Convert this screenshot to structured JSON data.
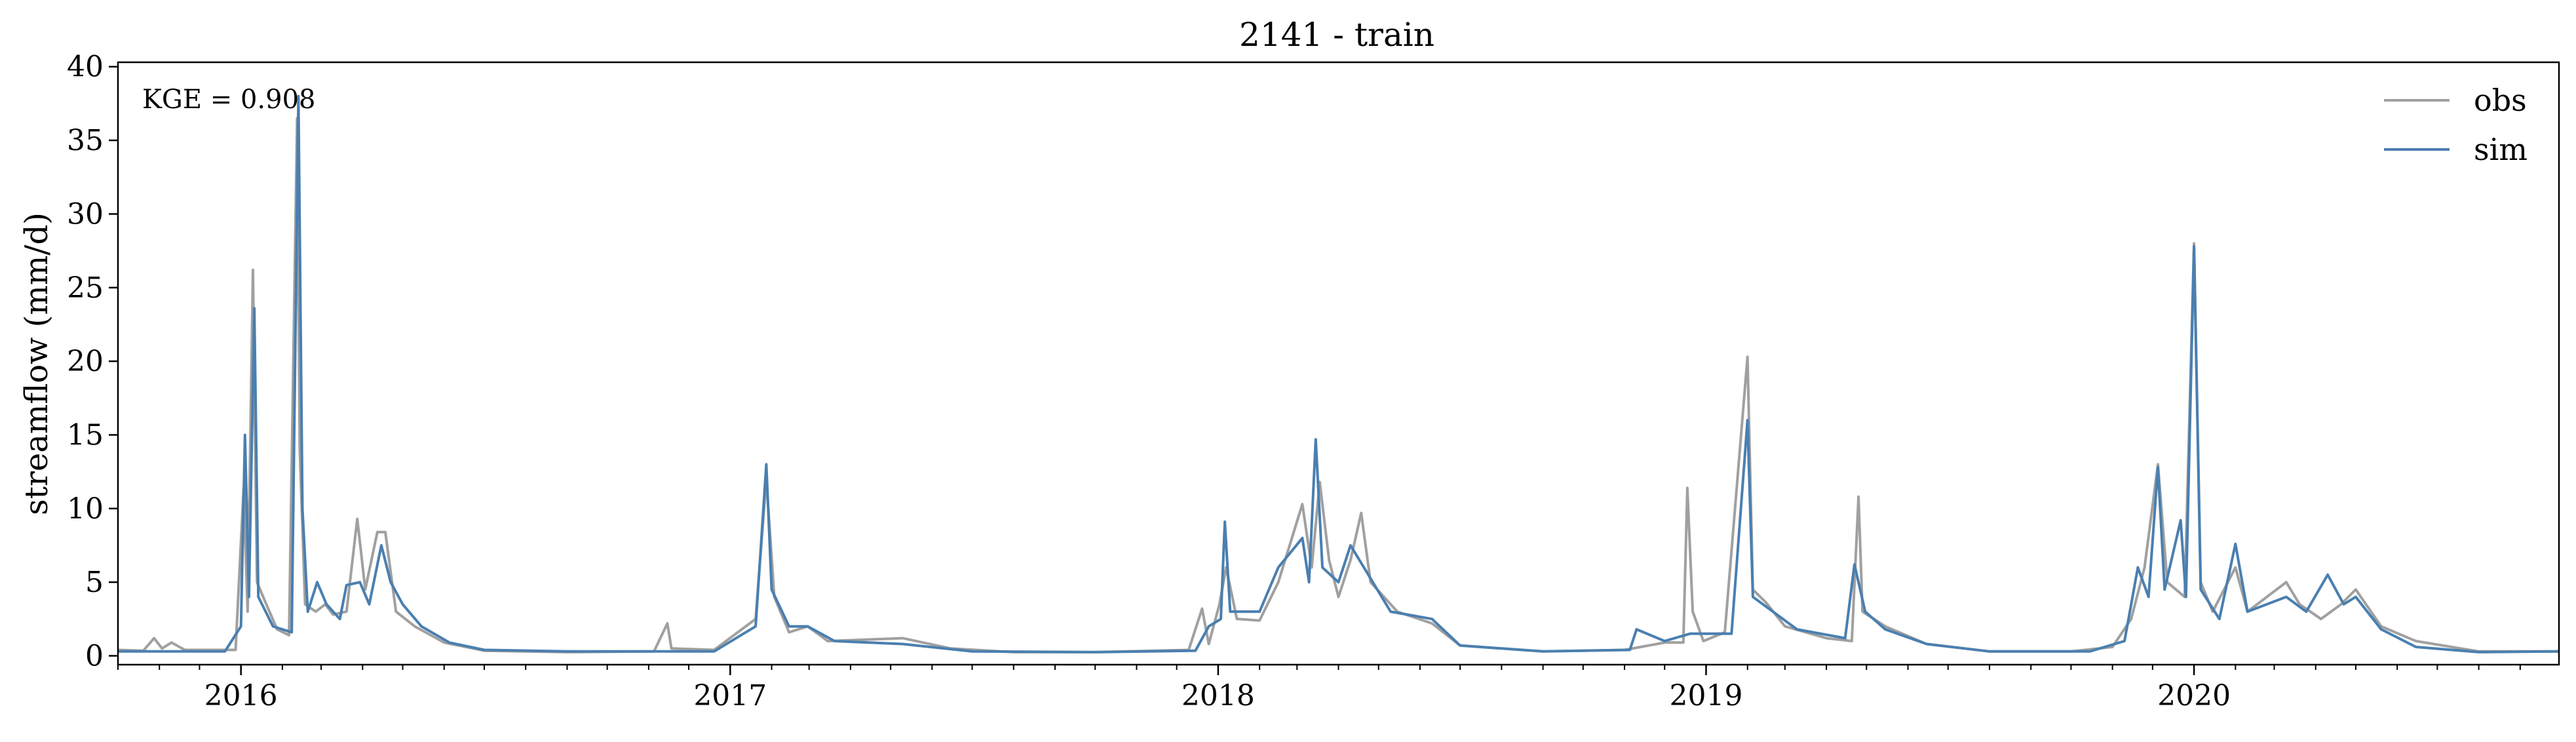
{
  "chart_data": {
    "type": "line",
    "title": "2141 - train",
    "xlabel": "",
    "ylabel": "streamflow (mm/d)",
    "annotation": "KGE = 0.908",
    "xlim": [
      "2015-10-01",
      "2020-09-30"
    ],
    "ylim": [
      -0.6,
      40.3
    ],
    "yticks": [
      0,
      5,
      10,
      15,
      20,
      25,
      30,
      35,
      40
    ],
    "xticks": [
      {
        "label": "2016",
        "date": "2016-01-01"
      },
      {
        "label": "2017",
        "date": "2017-01-01"
      },
      {
        "label": "2018",
        "date": "2018-01-01"
      },
      {
        "label": "2019",
        "date": "2019-01-01"
      },
      {
        "label": "2020",
        "date": "2020-01-01"
      }
    ],
    "grid": false,
    "legend_position": "top-right",
    "series": [
      {
        "name": "obs",
        "color": "#a0a0a0",
        "points": [
          [
            "2015-10-01",
            0.4
          ],
          [
            "2015-10-20",
            0.35
          ],
          [
            "2015-10-28",
            1.2
          ],
          [
            "2015-11-03",
            0.5
          ],
          [
            "2015-11-10",
            0.9
          ],
          [
            "2015-11-20",
            0.4
          ],
          [
            "2015-12-10",
            0.4
          ],
          [
            "2015-12-28",
            0.4
          ],
          [
            "2016-01-03",
            11.4
          ],
          [
            "2016-01-06",
            3.0
          ],
          [
            "2016-01-10",
            26.2
          ],
          [
            "2016-01-13",
            5.0
          ],
          [
            "2016-01-20",
            3.5
          ],
          [
            "2016-01-28",
            1.8
          ],
          [
            "2016-02-06",
            1.4
          ],
          [
            "2016-02-12",
            36.5
          ],
          [
            "2016-02-14",
            14.0
          ],
          [
            "2016-02-18",
            3.5
          ],
          [
            "2016-02-26",
            3.0
          ],
          [
            "2016-03-04",
            3.5
          ],
          [
            "2016-03-10",
            2.8
          ],
          [
            "2016-03-20",
            3.0
          ],
          [
            "2016-03-28",
            9.3
          ],
          [
            "2016-04-03",
            4.5
          ],
          [
            "2016-04-12",
            8.4
          ],
          [
            "2016-04-18",
            8.4
          ],
          [
            "2016-04-26",
            3.0
          ],
          [
            "2016-05-10",
            2.0
          ],
          [
            "2016-06-01",
            0.9
          ],
          [
            "2016-07-01",
            0.35
          ],
          [
            "2016-09-01",
            0.25
          ],
          [
            "2016-11-05",
            0.3
          ],
          [
            "2016-11-15",
            2.2
          ],
          [
            "2016-11-18",
            0.5
          ],
          [
            "2016-12-20",
            0.4
          ],
          [
            "2017-01-20",
            2.5
          ],
          [
            "2017-01-28",
            12.0
          ],
          [
            "2017-02-03",
            4.0
          ],
          [
            "2017-02-14",
            1.6
          ],
          [
            "2017-02-28",
            2.0
          ],
          [
            "2017-03-15",
            1.0
          ],
          [
            "2017-05-10",
            1.2
          ],
          [
            "2017-06-15",
            0.5
          ],
          [
            "2017-08-01",
            0.25
          ],
          [
            "2017-10-01",
            0.25
          ],
          [
            "2017-12-10",
            0.4
          ],
          [
            "2017-12-20",
            3.2
          ],
          [
            "2017-12-25",
            0.8
          ],
          [
            "2018-01-02",
            3.5
          ],
          [
            "2018-01-07",
            6.0
          ],
          [
            "2018-01-15",
            2.5
          ],
          [
            "2018-02-01",
            2.4
          ],
          [
            "2018-02-15",
            5.0
          ],
          [
            "2018-03-05",
            10.3
          ],
          [
            "2018-03-12",
            6.0
          ],
          [
            "2018-03-18",
            11.8
          ],
          [
            "2018-03-25",
            6.5
          ],
          [
            "2018-04-01",
            4.0
          ],
          [
            "2018-04-10",
            6.5
          ],
          [
            "2018-04-18",
            9.7
          ],
          [
            "2018-04-25",
            5.0
          ],
          [
            "2018-05-15",
            3.0
          ],
          [
            "2018-06-10",
            2.2
          ],
          [
            "2018-07-01",
            0.7
          ],
          [
            "2018-09-01",
            0.3
          ],
          [
            "2018-11-01",
            0.4
          ],
          [
            "2018-12-01",
            0.9
          ],
          [
            "2018-12-15",
            0.9
          ],
          [
            "2018-12-18",
            11.4
          ],
          [
            "2018-12-22",
            3.0
          ],
          [
            "2018-12-30",
            1.0
          ],
          [
            "2019-01-15",
            1.6
          ],
          [
            "2019-02-01",
            20.3
          ],
          [
            "2019-02-05",
            4.5
          ],
          [
            "2019-02-15",
            3.6
          ],
          [
            "2019-03-01",
            2.0
          ],
          [
            "2019-04-01",
            1.2
          ],
          [
            "2019-04-20",
            1.0
          ],
          [
            "2019-04-25",
            10.8
          ],
          [
            "2019-04-28",
            3.0
          ],
          [
            "2019-05-15",
            2.0
          ],
          [
            "2019-06-15",
            0.8
          ],
          [
            "2019-08-01",
            0.3
          ],
          [
            "2019-10-01",
            0.3
          ],
          [
            "2019-11-01",
            0.6
          ],
          [
            "2019-11-15",
            2.5
          ],
          [
            "2019-11-25",
            6.0
          ],
          [
            "2019-12-05",
            13.0
          ],
          [
            "2019-12-12",
            5.0
          ],
          [
            "2019-12-25",
            4.0
          ],
          [
            "2020-01-01",
            28.0
          ],
          [
            "2020-01-06",
            5.0
          ],
          [
            "2020-01-15",
            3.0
          ],
          [
            "2020-02-01",
            6.0
          ],
          [
            "2020-02-10",
            3.0
          ],
          [
            "2020-03-10",
            5.0
          ],
          [
            "2020-03-20",
            3.5
          ],
          [
            "2020-04-05",
            2.5
          ],
          [
            "2020-04-20",
            3.5
          ],
          [
            "2020-05-01",
            4.5
          ],
          [
            "2020-05-20",
            2.0
          ],
          [
            "2020-06-15",
            1.0
          ],
          [
            "2020-08-01",
            0.3
          ],
          [
            "2020-09-30",
            0.3
          ]
        ]
      },
      {
        "name": "sim",
        "color": "#4a7fb0",
        "points": [
          [
            "2015-10-01",
            0.3
          ],
          [
            "2015-10-20",
            0.3
          ],
          [
            "2015-11-15",
            0.3
          ],
          [
            "2015-12-20",
            0.3
          ],
          [
            "2016-01-01",
            2.0
          ],
          [
            "2016-01-04",
            15.0
          ],
          [
            "2016-01-07",
            4.0
          ],
          [
            "2016-01-11",
            23.6
          ],
          [
            "2016-01-14",
            4.0
          ],
          [
            "2016-01-25",
            2.0
          ],
          [
            "2016-02-08",
            1.6
          ],
          [
            "2016-02-13",
            38.0
          ],
          [
            "2016-02-16",
            10.0
          ],
          [
            "2016-02-20",
            3.0
          ],
          [
            "2016-02-27",
            5.0
          ],
          [
            "2016-03-05",
            3.5
          ],
          [
            "2016-03-15",
            2.5
          ],
          [
            "2016-03-20",
            4.8
          ],
          [
            "2016-03-30",
            5.0
          ],
          [
            "2016-04-06",
            3.5
          ],
          [
            "2016-04-15",
            7.5
          ],
          [
            "2016-04-22",
            5.0
          ],
          [
            "2016-05-01",
            3.5
          ],
          [
            "2016-05-15",
            2.0
          ],
          [
            "2016-06-05",
            0.9
          ],
          [
            "2016-07-01",
            0.4
          ],
          [
            "2016-09-01",
            0.3
          ],
          [
            "2016-11-15",
            0.3
          ],
          [
            "2016-12-20",
            0.3
          ],
          [
            "2017-01-20",
            2.0
          ],
          [
            "2017-01-28",
            13.0
          ],
          [
            "2017-02-01",
            4.5
          ],
          [
            "2017-02-14",
            2.0
          ],
          [
            "2017-02-28",
            2.0
          ],
          [
            "2017-03-20",
            1.0
          ],
          [
            "2017-05-10",
            0.8
          ],
          [
            "2017-07-01",
            0.3
          ],
          [
            "2017-10-01",
            0.25
          ],
          [
            "2017-12-15",
            0.35
          ],
          [
            "2017-12-25",
            2.0
          ],
          [
            "2018-01-03",
            2.5
          ],
          [
            "2018-01-06",
            9.1
          ],
          [
            "2018-01-10",
            3.0
          ],
          [
            "2018-02-01",
            3.0
          ],
          [
            "2018-02-15",
            6.0
          ],
          [
            "2018-03-05",
            8.0
          ],
          [
            "2018-03-10",
            5.0
          ],
          [
            "2018-03-15",
            14.7
          ],
          [
            "2018-03-20",
            6.0
          ],
          [
            "2018-04-01",
            5.0
          ],
          [
            "2018-04-10",
            7.5
          ],
          [
            "2018-04-20",
            6.0
          ],
          [
            "2018-05-10",
            3.0
          ],
          [
            "2018-06-10",
            2.5
          ],
          [
            "2018-07-01",
            0.7
          ],
          [
            "2018-09-01",
            0.3
          ],
          [
            "2018-11-05",
            0.4
          ],
          [
            "2018-11-10",
            1.8
          ],
          [
            "2018-12-01",
            1.0
          ],
          [
            "2018-12-20",
            1.5
          ],
          [
            "2019-01-20",
            1.5
          ],
          [
            "2019-02-01",
            16.0
          ],
          [
            "2019-02-05",
            4.0
          ],
          [
            "2019-02-20",
            3.0
          ],
          [
            "2019-03-10",
            1.8
          ],
          [
            "2019-04-15",
            1.2
          ],
          [
            "2019-04-22",
            6.2
          ],
          [
            "2019-04-30",
            3.0
          ],
          [
            "2019-05-15",
            1.8
          ],
          [
            "2019-06-15",
            0.8
          ],
          [
            "2019-08-01",
            0.3
          ],
          [
            "2019-10-15",
            0.3
          ],
          [
            "2019-11-10",
            1.0
          ],
          [
            "2019-11-20",
            6.0
          ],
          [
            "2019-11-28",
            4.0
          ],
          [
            "2019-12-05",
            12.8
          ],
          [
            "2019-12-10",
            4.5
          ],
          [
            "2019-12-22",
            9.2
          ],
          [
            "2019-12-26",
            4.0
          ],
          [
            "2020-01-01",
            27.8
          ],
          [
            "2020-01-06",
            4.5
          ],
          [
            "2020-01-20",
            2.5
          ],
          [
            "2020-02-01",
            7.6
          ],
          [
            "2020-02-10",
            3.0
          ],
          [
            "2020-03-10",
            4.0
          ],
          [
            "2020-03-25",
            3.0
          ],
          [
            "2020-04-10",
            5.5
          ],
          [
            "2020-04-22",
            3.5
          ],
          [
            "2020-05-01",
            4.0
          ],
          [
            "2020-05-20",
            1.8
          ],
          [
            "2020-06-15",
            0.6
          ],
          [
            "2020-08-01",
            0.25
          ],
          [
            "2020-09-30",
            0.3
          ]
        ]
      }
    ]
  }
}
